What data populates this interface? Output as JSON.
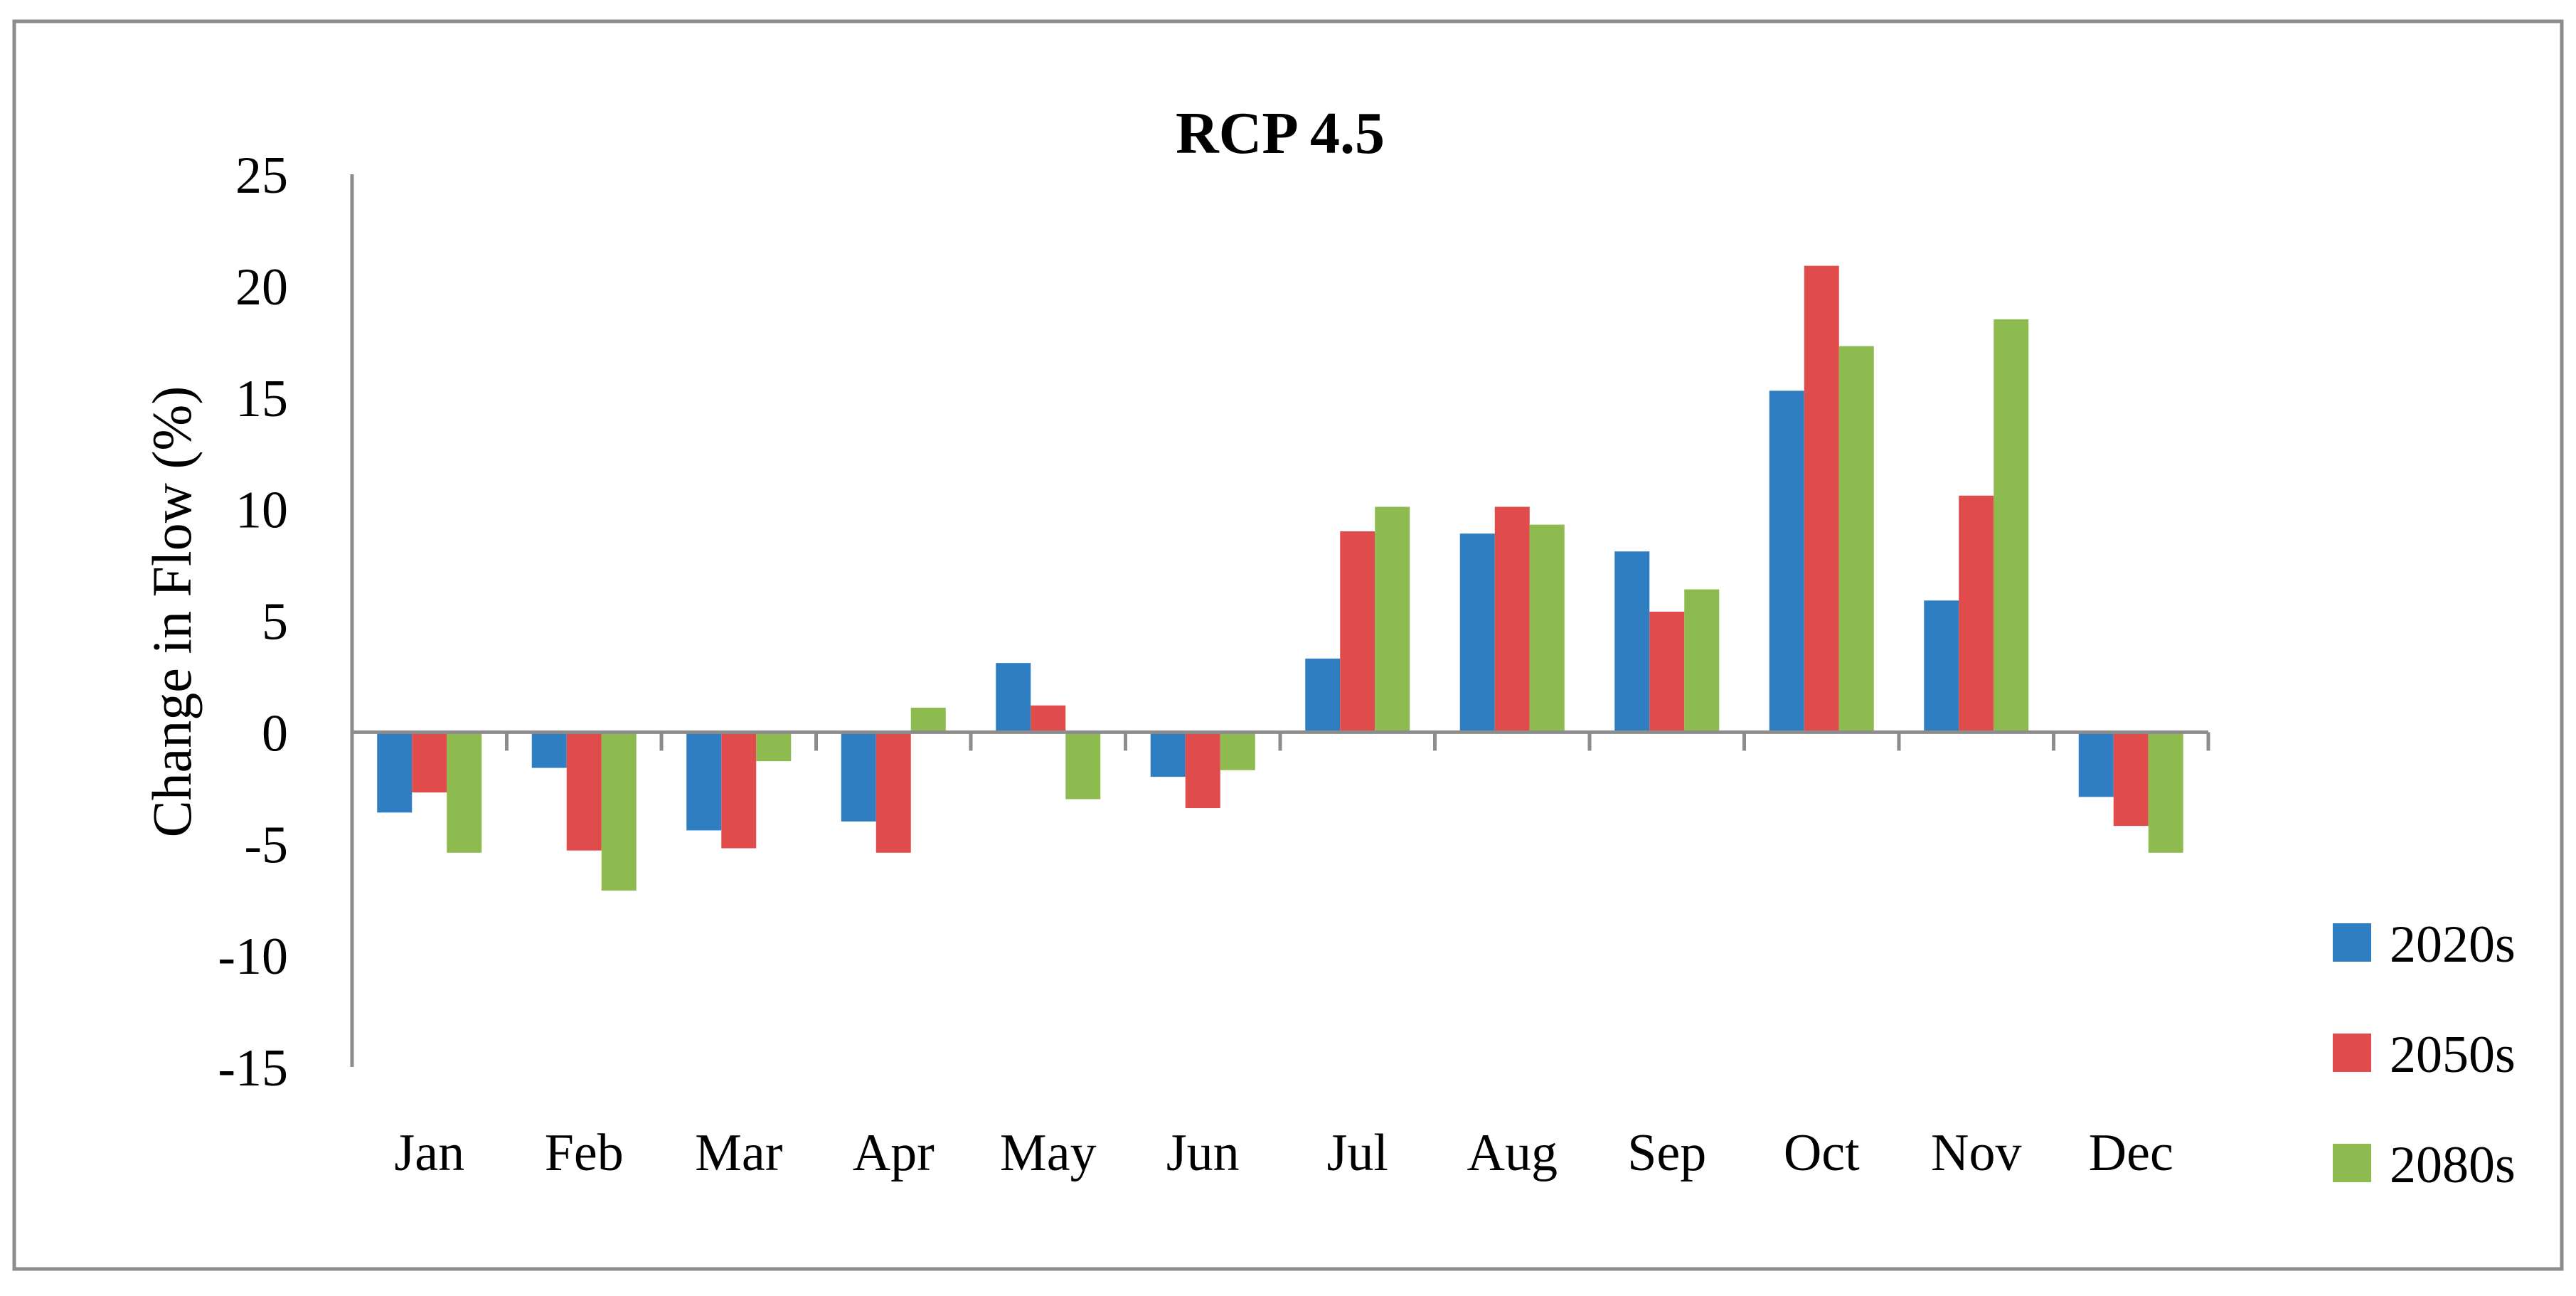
{
  "chart_data": {
    "type": "bar",
    "title": "RCP 4.5",
    "ylabel": "Change in Flow (%)",
    "xlabel": "",
    "ylim": [
      -15,
      25
    ],
    "yticks": [
      "25",
      "20",
      "15",
      "10",
      "5",
      "0",
      "-5",
      "-10",
      "-15"
    ],
    "ytick_values": [
      25,
      20,
      15,
      10,
      5,
      0,
      -5,
      -10,
      -15
    ],
    "categories": [
      "Jan",
      "Feb",
      "Mar",
      "Apr",
      "May",
      "Jun",
      "Jul",
      "Aug",
      "Sep",
      "Oct",
      "Nov",
      "Dec"
    ],
    "grid": false,
    "legend_position": "right",
    "series": [
      {
        "name": "2020s",
        "color": "#2E7EC1",
        "values": [
          -3.6,
          -1.6,
          -4.4,
          -4.0,
          3.1,
          -2.0,
          3.3,
          8.9,
          8.1,
          15.3,
          5.9,
          -2.9
        ]
      },
      {
        "name": "2050s",
        "color": "#E04C4C",
        "values": [
          -2.7,
          -5.3,
          -5.2,
          -5.4,
          1.2,
          -3.4,
          9.0,
          10.1,
          5.4,
          20.9,
          10.6,
          -4.2
        ]
      },
      {
        "name": "2080s",
        "color": "#8DBB4F",
        "values": [
          -5.4,
          -7.1,
          -1.3,
          1.1,
          -3.0,
          -1.7,
          10.1,
          9.3,
          6.4,
          17.3,
          18.5,
          -5.4
        ]
      }
    ]
  }
}
